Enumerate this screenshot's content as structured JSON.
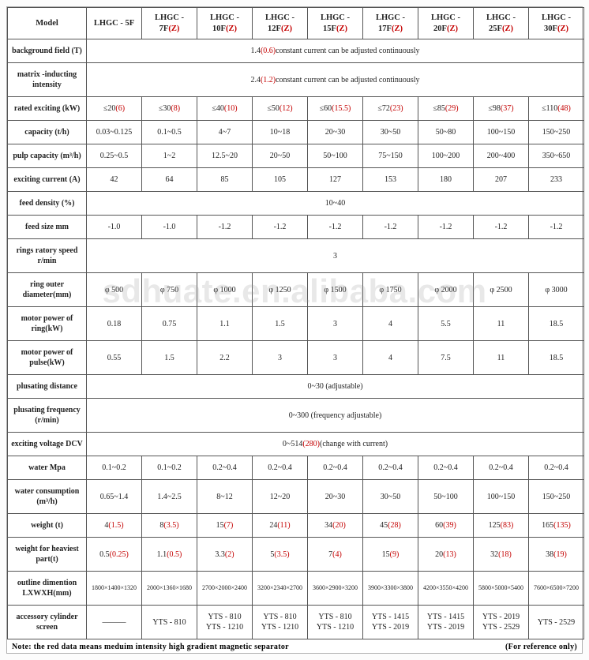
{
  "watermark": "sdhuate.en.alibaba.com",
  "footnote_left": "Note: the red data means meduim intensity high gradient magnetic separator",
  "footnote_right": "(For reference only)",
  "header": {
    "model": "Model",
    "cols": [
      "LHGC - 5F",
      "LHGC - 7F",
      "LHGC - 10F",
      "LHGC - 12F",
      "LHGC - 15F",
      "LHGC - 17F",
      "LHGC - 20F",
      "LHGC - 25F",
      "LHGC - 30F"
    ],
    "suffix": "(Z)"
  },
  "rows": {
    "bg_field": {
      "label": "background field (T)",
      "span_a": "1.4",
      "span_b": "(0.6)",
      "span_c": "constant current can be adjusted continuously"
    },
    "matrix": {
      "label": "matrix  -inducting intensity",
      "span_a": "2.4",
      "span_b": "(1.2)",
      "span_c": "constant current can be adjusted continuously"
    },
    "rated_exciting": {
      "label": "rated exciting  (kW)",
      "cells": [
        {
          "a": "≤20",
          "b": "(6)"
        },
        {
          "a": "≤30",
          "b": "(8)"
        },
        {
          "a": "≤40",
          "b": "(10)"
        },
        {
          "a": "≤50",
          "b": "(12)"
        },
        {
          "a": "≤60",
          "b": "(15.5)"
        },
        {
          "a": "≤72",
          "b": "(23)"
        },
        {
          "a": "≤85",
          "b": "(29)"
        },
        {
          "a": "≤98",
          "b": "(37)"
        },
        {
          "a": "≤110",
          "b": "(48)"
        }
      ]
    },
    "capacity": {
      "label": "capacity   (t/h)",
      "cells": [
        "0.03~0.125",
        "0.1~0.5",
        "4~7",
        "10~18",
        "20~30",
        "30~50",
        "50~80",
        "100~150",
        "150~250"
      ]
    },
    "pulp_capacity": {
      "label": "pulp capacity   (m³/h)",
      "cells": [
        "0.25~0.5",
        "1~2",
        "12.5~20",
        "20~50",
        "50~100",
        "75~150",
        "100~200",
        "200~400",
        "350~650"
      ]
    },
    "exciting_current": {
      "label": "exciting current  (A)",
      "cells": [
        "42",
        "64",
        "85",
        "105",
        "127",
        "153",
        "180",
        "207",
        "233"
      ]
    },
    "feed_density": {
      "label": "feed density (%)",
      "span": "10~40"
    },
    "feed_size": {
      "label": "feed size mm",
      "cells": [
        "-1.0",
        "-1.0",
        "-1.2",
        "-1.2",
        "-1.2",
        "-1.2",
        "-1.2",
        "-1.2",
        "-1.2"
      ]
    },
    "rings_speed": {
      "label": "rings ratory speed r/min",
      "span": "3"
    },
    "ring_outer": {
      "label": "ring outer diameter(mm)",
      "cells": [
        "φ 500",
        "φ 750",
        "φ 1000",
        "φ 1250",
        "φ 1500",
        "φ 1750",
        "φ 2000",
        "φ 2500",
        "φ 3000"
      ]
    },
    "motor_ring": {
      "label": "motor power of ring(kW)",
      "cells": [
        "0.18",
        "0.75",
        "1.1",
        "1.5",
        "3",
        "4",
        "5.5",
        "11",
        "18.5"
      ]
    },
    "motor_pulse": {
      "label": "motor power of pulse(kW)",
      "cells": [
        "0.55",
        "1.5",
        "2.2",
        "3",
        "3",
        "4",
        "7.5",
        "11",
        "18.5"
      ]
    },
    "plusating_dist": {
      "label": "plusating distance",
      "span": "0~30 (adjustable)"
    },
    "plusating_freq": {
      "label": "plusating frequency (r/min)",
      "span": "0~300 (frequency adjustable)"
    },
    "exciting_volt": {
      "label": "exciting voltage   DCV",
      "span_a": "0~514",
      "span_b": "(280)",
      "span_c": "(change   with current)"
    },
    "water_mpa": {
      "label": "water Mpa",
      "cells": [
        "0.1~0.2",
        "0.1~0.2",
        "0.2~0.4",
        "0.2~0.4",
        "0.2~0.4",
        "0.2~0.4",
        "0.2~0.4",
        "0.2~0.4",
        "0.2~0.4"
      ]
    },
    "water_cons": {
      "label": "water consumption (m³/h)",
      "cells": [
        "0.65~1.4",
        "1.4~2.5",
        "8~12",
        "12~20",
        "20~30",
        "30~50",
        "50~100",
        "100~150",
        "150~250"
      ]
    },
    "weight": {
      "label": "weight  (t)",
      "cells": [
        {
          "a": "4",
          "b": "(1.5)"
        },
        {
          "a": "8",
          "b": "(3.5)"
        },
        {
          "a": "15",
          "b": "(7)"
        },
        {
          "a": "24",
          "b": "(11)"
        },
        {
          "a": "34",
          "b": "(20)"
        },
        {
          "a": "45",
          "b": "(28)"
        },
        {
          "a": "60",
          "b": "(39)"
        },
        {
          "a": "125",
          "b": "(83)"
        },
        {
          "a": "165",
          "b": "(135)"
        }
      ]
    },
    "weight_heaviest": {
      "label": "weight for heaviest part(t)",
      "cells": [
        {
          "a": "0.5",
          "b": "(0.25)"
        },
        {
          "a": "1.1",
          "b": "(0.5)"
        },
        {
          "a": "3.3",
          "b": "(2)"
        },
        {
          "a": "5",
          "b": "(3.5)"
        },
        {
          "a": "7",
          "b": "(4)"
        },
        {
          "a": "15",
          "b": "(9)"
        },
        {
          "a": "20",
          "b": "(13)"
        },
        {
          "a": "32",
          "b": "(18)"
        },
        {
          "a": "38",
          "b": "(19)"
        }
      ]
    },
    "outline": {
      "label": "outline dimention LXWXH(mm)",
      "cells": [
        "1800×1400×1320",
        "2000×1360×1680",
        "2700×2000×2400",
        "3200×2340×2700",
        "3600×2900×3200",
        "3900×3300×3800",
        "4200×3550×4200",
        "5800×5000×5400",
        "7600×6500×7200"
      ],
      "fs": "8px"
    },
    "accessory": {
      "label": "accessory cylinder screen",
      "cells": [
        "———",
        "YTS - 810",
        "YTS - 810\nYTS - 1210",
        "YTS - 810\nYTS - 1210",
        "YTS - 810\nYTS - 1210",
        "YTS - 1415\nYTS - 2019",
        "YTS - 1415\nYTS - 2019",
        "YTS - 2019\nYTS - 2529",
        "YTS - 2529"
      ]
    }
  }
}
